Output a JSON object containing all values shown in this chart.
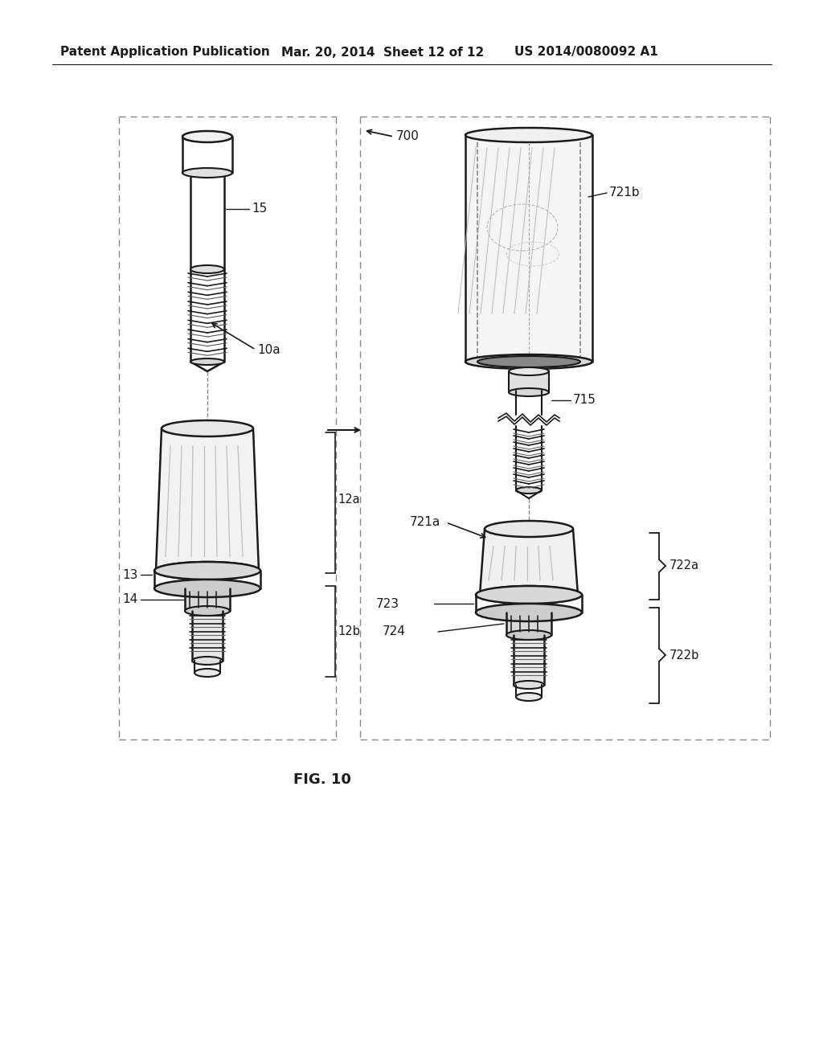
{
  "bg_color": "#ffffff",
  "lc": "#1a1a1a",
  "dc": "#888888",
  "header_left": "Patent Application Publication",
  "header_mid": "Mar. 20, 2014  Sheet 12 of 12",
  "header_right": "US 2014/0080092 A1",
  "fig_label": "FIG. 10",
  "shade_color": "#c8c8c8",
  "light_gray": "#e8e8e8",
  "mid_gray": "#d0d0d0"
}
